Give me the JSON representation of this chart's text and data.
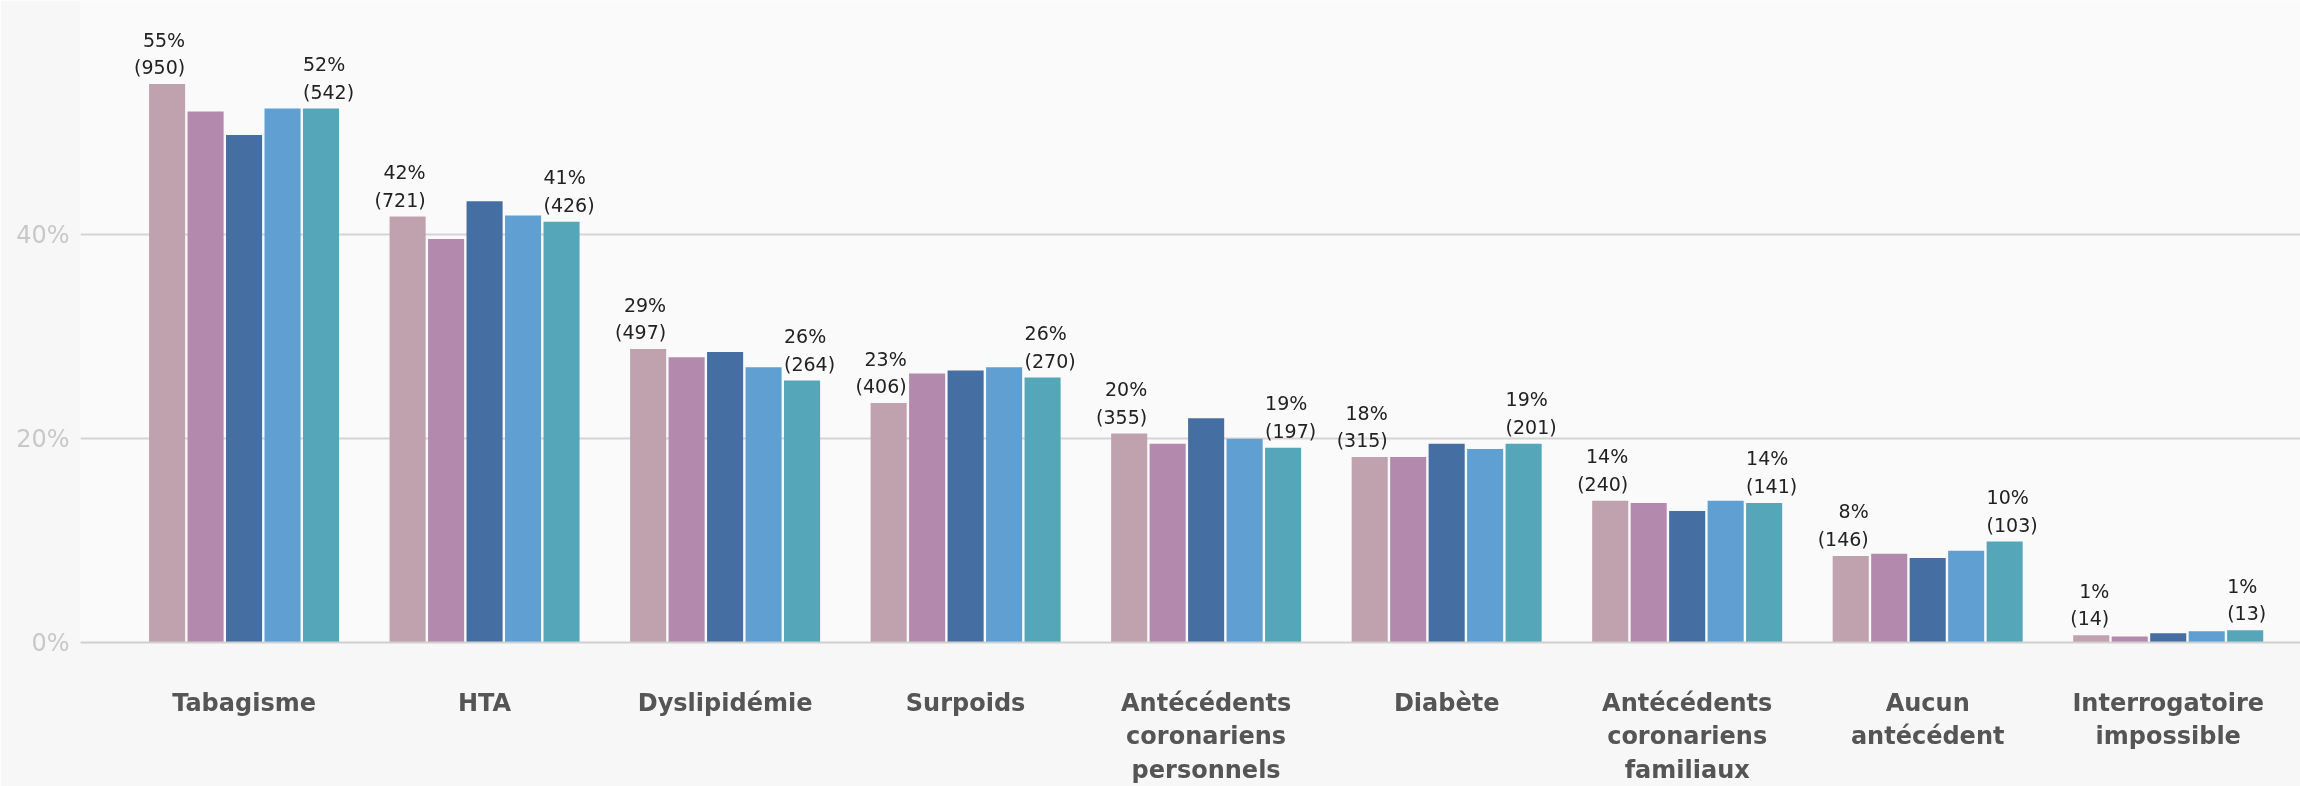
{
  "chart_data": {
    "type": "bar",
    "categories": [
      "Tabagisme",
      "HTA",
      "Dyslipidémie",
      "Surpoids",
      "Antécédents coronariens personnels",
      "Diabète",
      "Antécédents coronariens familiaux",
      "Aucun antécédent",
      "Interrogatoire impossible"
    ],
    "series": [
      {
        "color": "#c0a2ae",
        "values": [
          54.8,
          41.8,
          28.8,
          23.5,
          20.5,
          18.2,
          13.9,
          8.5,
          0.7
        ],
        "value_labels": [
          "55%\n(950)",
          "42%\n(721)",
          "29%\n(497)",
          "23%\n(406)",
          "20%\n(355)",
          "18%\n(315)",
          "14%\n(240)",
          "8%\n(146)",
          "1%\n(14)"
        ]
      },
      {
        "color": "#b38aae",
        "values": [
          52.1,
          39.6,
          28.0,
          26.4,
          19.5,
          18.2,
          13.7,
          8.7,
          0.6
        ]
      },
      {
        "color": "#456fa2",
        "values": [
          49.8,
          43.3,
          28.5,
          26.7,
          22.0,
          19.5,
          12.9,
          8.3,
          0.9
        ]
      },
      {
        "color": "#5f9fd2",
        "values": [
          52.4,
          41.9,
          27.0,
          27.0,
          20.0,
          19.0,
          13.9,
          9.0,
          1.1
        ]
      },
      {
        "color": "#56a6b9",
        "values": [
          52.4,
          41.3,
          25.7,
          26.0,
          19.1,
          19.5,
          13.7,
          9.9,
          1.2
        ],
        "value_labels": [
          "52%\n(542)",
          "41%\n(426)",
          "26%\n(264)",
          "26%\n(270)",
          "19%\n(197)",
          "19%\n(201)",
          "14%\n(141)",
          "10%\n(103)",
          "1%\n(13)"
        ]
      }
    ],
    "ylim": [
      0,
      63
    ],
    "yticks": [
      {
        "value": 0,
        "label": "0%"
      },
      {
        "value": 20,
        "label": "20%"
      },
      {
        "value": 40,
        "label": "40%"
      }
    ],
    "grid": "y"
  }
}
